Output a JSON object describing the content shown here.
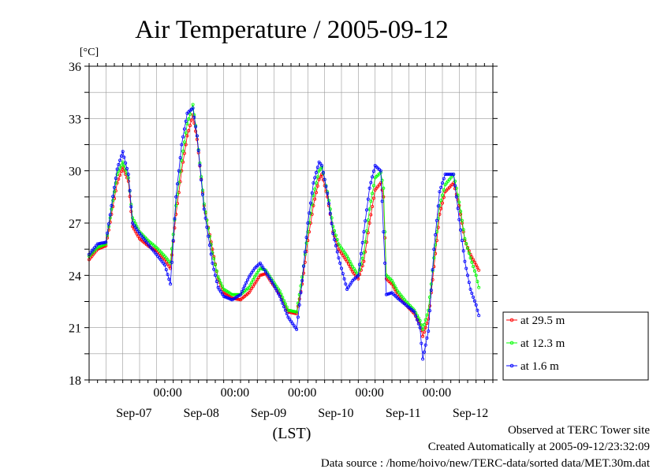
{
  "chart_data": {
    "type": "line",
    "title": "Air Temperature / 2005-09-12",
    "ylabel": "[°C]",
    "xlabel": "(LST)",
    "ylim": [
      18,
      36
    ],
    "yticks": [
      "36",
      "33",
      "30",
      "27",
      "24",
      "21",
      "18"
    ],
    "xlim_hours": [
      0,
      144
    ],
    "midnight_ticks": [
      "00:00",
      "00:00",
      "00:00",
      "00:00",
      "00:00"
    ],
    "date_labels": [
      "Sep-07",
      "Sep-08",
      "Sep-09",
      "Sep-10",
      "Sep-11",
      "Sep-12"
    ],
    "x_unit": "hours since 2005-09-06 20:00 LST",
    "grid": true,
    "legend_position": "lower-right, outside plot",
    "series": [
      {
        "name": "at 29.5 m",
        "color": "#ff0000",
        "points": [
          [
            0,
            24.9
          ],
          [
            3,
            25.5
          ],
          [
            6,
            25.7
          ],
          [
            8,
            27.5
          ],
          [
            10,
            29.3
          ],
          [
            12,
            30.2
          ],
          [
            14,
            29.4
          ],
          [
            15.5,
            26.8
          ],
          [
            18,
            26.1
          ],
          [
            21,
            25.7
          ],
          [
            24,
            25.4
          ],
          [
            27,
            24.9
          ],
          [
            29,
            24.4
          ],
          [
            31,
            27.5
          ],
          [
            33,
            30.0
          ],
          [
            35,
            32.0
          ],
          [
            37,
            33.2
          ],
          [
            38.5,
            31.8
          ],
          [
            41,
            28.0
          ],
          [
            44,
            25.5
          ],
          [
            46,
            23.8
          ],
          [
            48,
            23.0
          ],
          [
            51,
            22.7
          ],
          [
            54,
            22.6
          ],
          [
            57,
            23.0
          ],
          [
            59,
            23.5
          ],
          [
            61,
            24.0
          ],
          [
            63,
            24.1
          ],
          [
            65,
            23.6
          ],
          [
            68,
            22.9
          ],
          [
            71,
            21.9
          ],
          [
            74,
            21.8
          ],
          [
            76,
            23.5
          ],
          [
            78,
            26.0
          ],
          [
            80,
            28.0
          ],
          [
            82,
            29.5
          ],
          [
            83,
            29.8
          ],
          [
            85,
            28.5
          ],
          [
            87,
            26.5
          ],
          [
            89,
            25.5
          ],
          [
            92,
            24.8
          ],
          [
            94,
            24.2
          ],
          [
            96,
            23.8
          ],
          [
            98,
            24.8
          ],
          [
            100,
            27.0
          ],
          [
            102,
            28.9
          ],
          [
            104,
            29.3
          ],
          [
            105,
            28.5
          ],
          [
            106,
            23.8
          ],
          [
            108,
            23.5
          ],
          [
            110,
            22.9
          ],
          [
            113,
            22.3
          ],
          [
            116,
            21.8
          ],
          [
            118,
            21.2
          ],
          [
            119,
            20.5
          ],
          [
            121,
            21.5
          ],
          [
            123,
            24.5
          ],
          [
            125,
            27.5
          ],
          [
            127,
            28.8
          ],
          [
            130,
            29.3
          ],
          [
            132,
            28.0
          ],
          [
            134,
            26.0
          ],
          [
            136,
            25.2
          ],
          [
            138,
            24.6
          ],
          [
            139,
            24.3
          ]
        ]
      },
      {
        "name": "at 12.3 m",
        "color": "#00ff00",
        "points": [
          [
            0,
            25.1
          ],
          [
            3,
            25.6
          ],
          [
            6,
            25.8
          ],
          [
            8,
            27.8
          ],
          [
            10,
            29.8
          ],
          [
            12,
            30.5
          ],
          [
            14,
            29.6
          ],
          [
            15.5,
            27.3
          ],
          [
            18,
            26.5
          ],
          [
            21,
            26.0
          ],
          [
            24,
            25.6
          ],
          [
            27,
            25.1
          ],
          [
            29,
            24.7
          ],
          [
            31,
            28.0
          ],
          [
            33,
            30.6
          ],
          [
            35,
            32.7
          ],
          [
            37,
            33.8
          ],
          [
            38.5,
            32.0
          ],
          [
            41,
            28.1
          ],
          [
            44,
            25.3
          ],
          [
            46,
            23.9
          ],
          [
            48,
            23.2
          ],
          [
            51,
            22.9
          ],
          [
            54,
            22.9
          ],
          [
            57,
            23.3
          ],
          [
            59,
            23.9
          ],
          [
            61,
            24.4
          ],
          [
            63,
            24.3
          ],
          [
            65,
            23.8
          ],
          [
            68,
            23.1
          ],
          [
            71,
            22.0
          ],
          [
            74,
            21.9
          ],
          [
            76,
            23.9
          ],
          [
            78,
            26.5
          ],
          [
            80,
            28.6
          ],
          [
            82,
            30.0
          ],
          [
            83,
            30.2
          ],
          [
            85,
            28.8
          ],
          [
            87,
            26.8
          ],
          [
            89,
            25.8
          ],
          [
            92,
            25.1
          ],
          [
            94,
            24.5
          ],
          [
            96,
            24.0
          ],
          [
            98,
            25.3
          ],
          [
            100,
            27.8
          ],
          [
            102,
            29.6
          ],
          [
            104,
            29.9
          ],
          [
            105,
            29.0
          ],
          [
            106,
            24.0
          ],
          [
            108,
            23.7
          ],
          [
            110,
            23.1
          ],
          [
            113,
            22.5
          ],
          [
            116,
            22.0
          ],
          [
            118,
            21.4
          ],
          [
            119,
            20.9
          ],
          [
            121,
            22.0
          ],
          [
            123,
            25.0
          ],
          [
            125,
            28.0
          ],
          [
            127,
            29.2
          ],
          [
            130,
            29.8
          ],
          [
            132,
            28.2
          ],
          [
            134,
            26.1
          ],
          [
            136,
            25.0
          ],
          [
            138,
            24.0
          ],
          [
            139,
            23.3
          ]
        ]
      },
      {
        "name": "at 1.6 m",
        "color": "#0000ff",
        "points": [
          [
            0,
            25.2
          ],
          [
            3,
            25.8
          ],
          [
            6,
            25.9
          ],
          [
            8,
            28.0
          ],
          [
            10,
            30.1
          ],
          [
            12,
            31.1
          ],
          [
            14,
            29.8
          ],
          [
            15.5,
            27.0
          ],
          [
            18,
            26.4
          ],
          [
            21,
            25.8
          ],
          [
            24,
            25.2
          ],
          [
            27,
            24.6
          ],
          [
            29,
            23.5
          ],
          [
            31,
            28.5
          ],
          [
            33,
            31.5
          ],
          [
            35,
            33.3
          ],
          [
            37,
            33.6
          ],
          [
            38.5,
            32.0
          ],
          [
            41,
            27.8
          ],
          [
            44,
            24.7
          ],
          [
            46,
            23.3
          ],
          [
            48,
            22.8
          ],
          [
            51,
            22.6
          ],
          [
            54,
            22.9
          ],
          [
            57,
            23.9
          ],
          [
            59,
            24.4
          ],
          [
            61,
            24.7
          ],
          [
            63,
            24.2
          ],
          [
            65,
            23.7
          ],
          [
            68,
            22.8
          ],
          [
            71,
            21.6
          ],
          [
            74,
            20.9
          ],
          [
            76,
            23.7
          ],
          [
            78,
            27.0
          ],
          [
            80,
            29.3
          ],
          [
            82,
            30.5
          ],
          [
            83,
            30.3
          ],
          [
            85,
            28.7
          ],
          [
            87,
            26.4
          ],
          [
            89,
            25.0
          ],
          [
            92,
            23.2
          ],
          [
            94,
            23.7
          ],
          [
            96,
            24.0
          ],
          [
            98,
            26.5
          ],
          [
            100,
            29.0
          ],
          [
            102,
            30.3
          ],
          [
            104,
            30.0
          ],
          [
            105,
            26.5
          ],
          [
            106,
            22.9
          ],
          [
            108,
            23.0
          ],
          [
            110,
            22.7
          ],
          [
            113,
            22.3
          ],
          [
            116,
            21.9
          ],
          [
            118,
            21.0
          ],
          [
            119,
            19.2
          ],
          [
            121,
            20.8
          ],
          [
            123,
            25.5
          ],
          [
            125,
            28.8
          ],
          [
            127,
            29.8
          ],
          [
            130,
            29.8
          ],
          [
            132,
            27.2
          ],
          [
            134,
            24.8
          ],
          [
            136,
            23.2
          ],
          [
            138,
            22.3
          ],
          [
            139,
            21.7
          ]
        ]
      }
    ]
  },
  "footer": {
    "line1": "Observed at TERC Tower site",
    "line2": "Created Automatically at 2005-09-12/23:32:09",
    "line3": "Data source : /home/hoivo/new/TERC-data/sorted  data/MET.30m.dat"
  }
}
